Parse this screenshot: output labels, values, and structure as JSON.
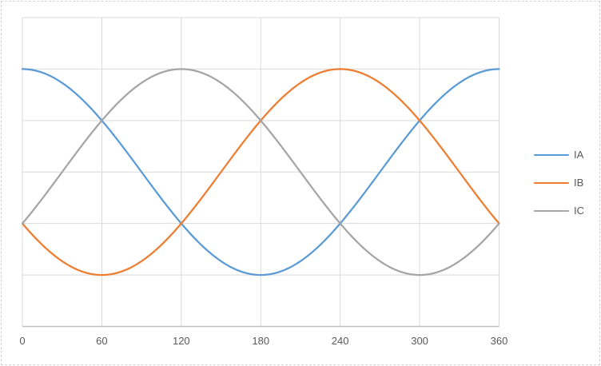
{
  "chart_data": {
    "type": "line",
    "x_ticks": [
      0,
      60,
      120,
      180,
      240,
      300,
      360
    ],
    "x_tick_labels": [
      "0",
      "60",
      "120",
      "180",
      "240",
      "300",
      "360"
    ],
    "xlim": [
      0,
      360
    ],
    "ylim": [
      -1.5,
      1.5
    ],
    "y_gridline_step": 0.5,
    "grid": true,
    "legend_position": "right",
    "legend_entries": [
      "IA",
      "IB",
      "IC"
    ],
    "colors": {
      "gridline": "#d9d9d9",
      "axis_line": "#bfbfbf",
      "tick_label": "#595959",
      "legend_text": "#595959"
    },
    "series": [
      {
        "name": "IA",
        "color": "#5B9BD5",
        "waveform": "cosine",
        "amplitude": 1,
        "phase_deg": 0,
        "x": [
          0,
          30,
          60,
          90,
          120,
          150,
          180,
          210,
          240,
          270,
          300,
          330,
          360
        ],
        "values": [
          1,
          0.866,
          0.5,
          0,
          -0.5,
          -0.866,
          -1,
          -0.866,
          -0.5,
          0,
          0.5,
          0.866,
          1
        ]
      },
      {
        "name": "IB",
        "color": "#ED7D31",
        "waveform": "cosine",
        "amplitude": 1,
        "phase_deg": 240,
        "x": [
          0,
          30,
          60,
          90,
          120,
          150,
          180,
          210,
          240,
          270,
          300,
          330,
          360
        ],
        "values": [
          -0.5,
          -0.866,
          -1,
          -0.866,
          -0.5,
          0,
          0.5,
          0.866,
          1,
          0.866,
          0.5,
          0,
          -0.5
        ]
      },
      {
        "name": "IC",
        "color": "#A5A5A5",
        "waveform": "cosine",
        "amplitude": 1,
        "phase_deg": 120,
        "x": [
          0,
          30,
          60,
          90,
          120,
          150,
          180,
          210,
          240,
          270,
          300,
          330,
          360
        ],
        "values": [
          -0.5,
          0,
          0.5,
          0.866,
          1,
          0.866,
          0.5,
          0,
          -0.5,
          -0.866,
          -1,
          -0.866,
          -0.5
        ]
      }
    ]
  }
}
